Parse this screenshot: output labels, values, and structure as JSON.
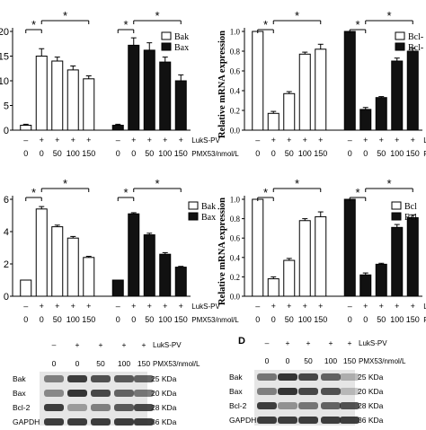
{
  "colors": {
    "white_bar": "#ffffff",
    "black_bar": "#111111",
    "axis": "#000000",
    "blot_band": "#2a2a2a",
    "blot_bg": "#e6e6e6"
  },
  "conditions": {
    "lukspv_label": "LukS-PV",
    "pmx_label": "PMX53/nmol/L",
    "lukspv": [
      "–",
      "+",
      "+",
      "+",
      "+"
    ],
    "pmx": [
      "0",
      "0",
      "50",
      "100",
      "150"
    ]
  },
  "chart_data": [
    {
      "type": "bar",
      "ylabel": "",
      "ylim": [
        0,
        20
      ],
      "yticks": [
        "0",
        "5",
        "10",
        "15",
        "20"
      ],
      "legend": [
        "Bak",
        "Bax"
      ],
      "legend_placement": "top-right",
      "series": [
        {
          "name": "Bak",
          "values": [
            1.0,
            15.0,
            14.0,
            12.2,
            10.4
          ],
          "errors": [
            0.2,
            1.5,
            0.8,
            0.8,
            0.6
          ]
        },
        {
          "name": "Bax",
          "values": [
            1.0,
            17.2,
            16.2,
            13.8,
            10.0
          ],
          "errors": [
            0.2,
            1.5,
            1.5,
            1.0,
            1.2
          ]
        }
      ],
      "significance": [
        "*",
        "*",
        "*",
        "*"
      ]
    },
    {
      "type": "bar",
      "ylabel": "Relative mRNA expression",
      "ylim": [
        0,
        1.0
      ],
      "yticks": [
        "0.0",
        "0.2",
        "0.4",
        "0.6",
        "0.8",
        "1.0"
      ],
      "legend": [
        "Bcl-",
        "Bcl-"
      ],
      "legend_placement": "top-right",
      "series": [
        {
          "name": "Bcl-",
          "values": [
            1.0,
            0.17,
            0.37,
            0.77,
            0.82
          ],
          "errors": [
            0.0,
            0.02,
            0.02,
            0.02,
            0.05
          ]
        },
        {
          "name": "Bcl-",
          "values": [
            1.0,
            0.21,
            0.33,
            0.7,
            0.8
          ],
          "errors": [
            0.0,
            0.02,
            0.01,
            0.03,
            0.03
          ]
        }
      ],
      "significance": [
        "*",
        "*",
        "*",
        "*"
      ]
    },
    {
      "type": "bar",
      "ylabel": "",
      "ylim": [
        0,
        6
      ],
      "yticks": [
        "0",
        "2",
        "4",
        "6"
      ],
      "legend": [
        "Bak",
        "Bax"
      ],
      "legend_placement": "top-right",
      "series": [
        {
          "name": "Bak",
          "values": [
            1.0,
            5.4,
            4.3,
            3.6,
            2.4
          ],
          "errors": [
            0.0,
            0.15,
            0.1,
            0.1,
            0.07
          ]
        },
        {
          "name": "Bax",
          "values": [
            1.0,
            5.1,
            3.8,
            2.6,
            1.8
          ],
          "errors": [
            0.0,
            0.07,
            0.1,
            0.1,
            0.05
          ]
        }
      ],
      "significance": [
        "*",
        "*",
        "*",
        "*"
      ]
    },
    {
      "type": "bar",
      "ylabel": "Relative mRNA expression",
      "ylim": [
        0,
        1.0
      ],
      "yticks": [
        "0.0",
        "0.2",
        "0.4",
        "0.6",
        "0.8",
        "1.0"
      ],
      "legend": [
        "Bcl",
        "Bcl"
      ],
      "legend_placement": "top-right",
      "series": [
        {
          "name": "Bcl",
          "values": [
            1.0,
            0.18,
            0.37,
            0.78,
            0.82
          ],
          "errors": [
            0.0,
            0.02,
            0.02,
            0.02,
            0.05
          ]
        },
        {
          "name": "Bcl",
          "values": [
            1.0,
            0.22,
            0.33,
            0.71,
            0.81
          ],
          "errors": [
            0.0,
            0.02,
            0.01,
            0.03,
            0.03
          ]
        }
      ],
      "significance": [
        "*",
        "*",
        "*",
        "*"
      ]
    }
  ],
  "blots": [
    {
      "panel_label": "",
      "lukspv": [
        "–",
        "+",
        "+",
        "+",
        "+"
      ],
      "pmx": [
        "0",
        "0",
        "50",
        "100",
        "150"
      ],
      "rows": [
        {
          "protein": "Bak",
          "kda": "25 KDa",
          "intensity": [
            0.55,
            0.9,
            0.8,
            0.75,
            0.7
          ]
        },
        {
          "protein": "Bax",
          "kda": "20 KDa",
          "intensity": [
            0.5,
            0.95,
            0.85,
            0.7,
            0.6
          ]
        },
        {
          "protein": "Bcl-2",
          "kda": "28 KDa",
          "intensity": [
            0.9,
            0.4,
            0.55,
            0.75,
            0.85
          ]
        },
        {
          "protein": "GAPDH",
          "kda": "36 KDa",
          "intensity": [
            0.9,
            0.9,
            0.9,
            0.9,
            0.9
          ]
        }
      ]
    },
    {
      "panel_label": "D",
      "lukspv": [
        "–",
        "+",
        "+",
        "+",
        "+"
      ],
      "pmx": [
        "0",
        "0",
        "50",
        "100",
        "150"
      ],
      "rows": [
        {
          "protein": "Bak",
          "kda": "25 KDa",
          "intensity": [
            0.6,
            0.95,
            0.85,
            0.7,
            0.3
          ]
        },
        {
          "protein": "Bax",
          "kda": "20 KDa",
          "intensity": [
            0.55,
            0.95,
            0.85,
            0.8,
            0.25
          ]
        },
        {
          "protein": "Bcl-2",
          "kda": "28 KDa",
          "intensity": [
            0.9,
            0.45,
            0.6,
            0.7,
            0.8
          ]
        },
        {
          "protein": "GAPDH",
          "kda": "36 KDa",
          "intensity": [
            0.9,
            0.9,
            0.9,
            0.9,
            0.9
          ]
        }
      ]
    }
  ]
}
